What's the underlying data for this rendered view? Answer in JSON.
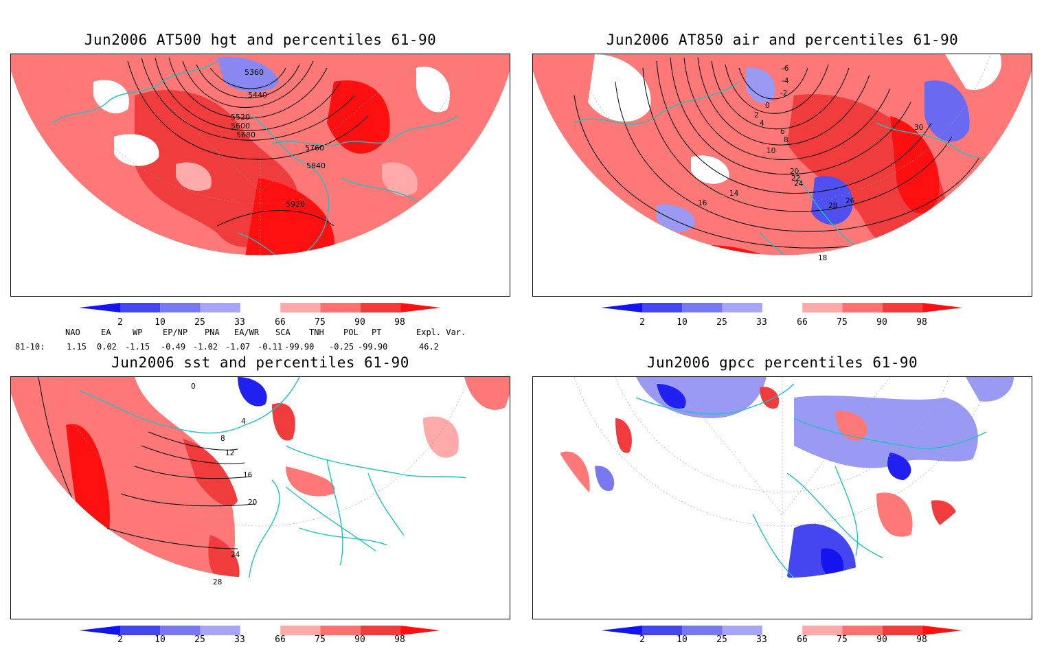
{
  "panels": [
    {
      "id": "hgt500",
      "title": "Jun2006 AT500 hgt and percentiles 61-90",
      "contour_labels": [
        "5360",
        "5440",
        "5520",
        "5600",
        "5680",
        "5760",
        "5840",
        "5920"
      ]
    },
    {
      "id": "air850",
      "title": "Jun2006 AT850 air and percentiles 61-90",
      "contour_labels": [
        "-6",
        "-4",
        "-2",
        "0",
        "2",
        "4",
        "6",
        "8",
        "10",
        "14",
        "16",
        "18",
        "20",
        "22",
        "24",
        "26",
        "28",
        "30"
      ]
    },
    {
      "id": "sst",
      "title": "Jun2006 sst and percentiles 61-90",
      "contour_labels": [
        "0",
        "4",
        "8",
        "12",
        "16",
        "20",
        "24",
        "28"
      ]
    },
    {
      "id": "gpcc",
      "title": "Jun2006 gpcc percentiles 61-90",
      "contour_labels": []
    }
  ],
  "colorbar": {
    "labels": [
      "2",
      "10",
      "25",
      "33",
      "66",
      "75",
      "90",
      "98"
    ],
    "colors": [
      "#1414f0",
      "#4646f0",
      "#7878f0",
      "#a6a6f5",
      "#ffffff",
      "#ffaaaa",
      "#ff7070",
      "#f03c3c",
      "#ff1010"
    ]
  },
  "teleconnections": {
    "row_label": "81-10:",
    "headers": [
      "NAO",
      "EA",
      "WP",
      "EP/NP",
      "PNA",
      "EA/WR",
      "SCA",
      "TNH",
      "POL",
      "PT",
      "Expl. Var."
    ],
    "values": [
      "1.15",
      "0.02",
      "-1.15",
      "-0.49",
      "-1.02",
      "-1.07",
      "-0.11",
      "-99.90",
      "-0.25",
      "-99.90",
      "46.2"
    ]
  }
}
